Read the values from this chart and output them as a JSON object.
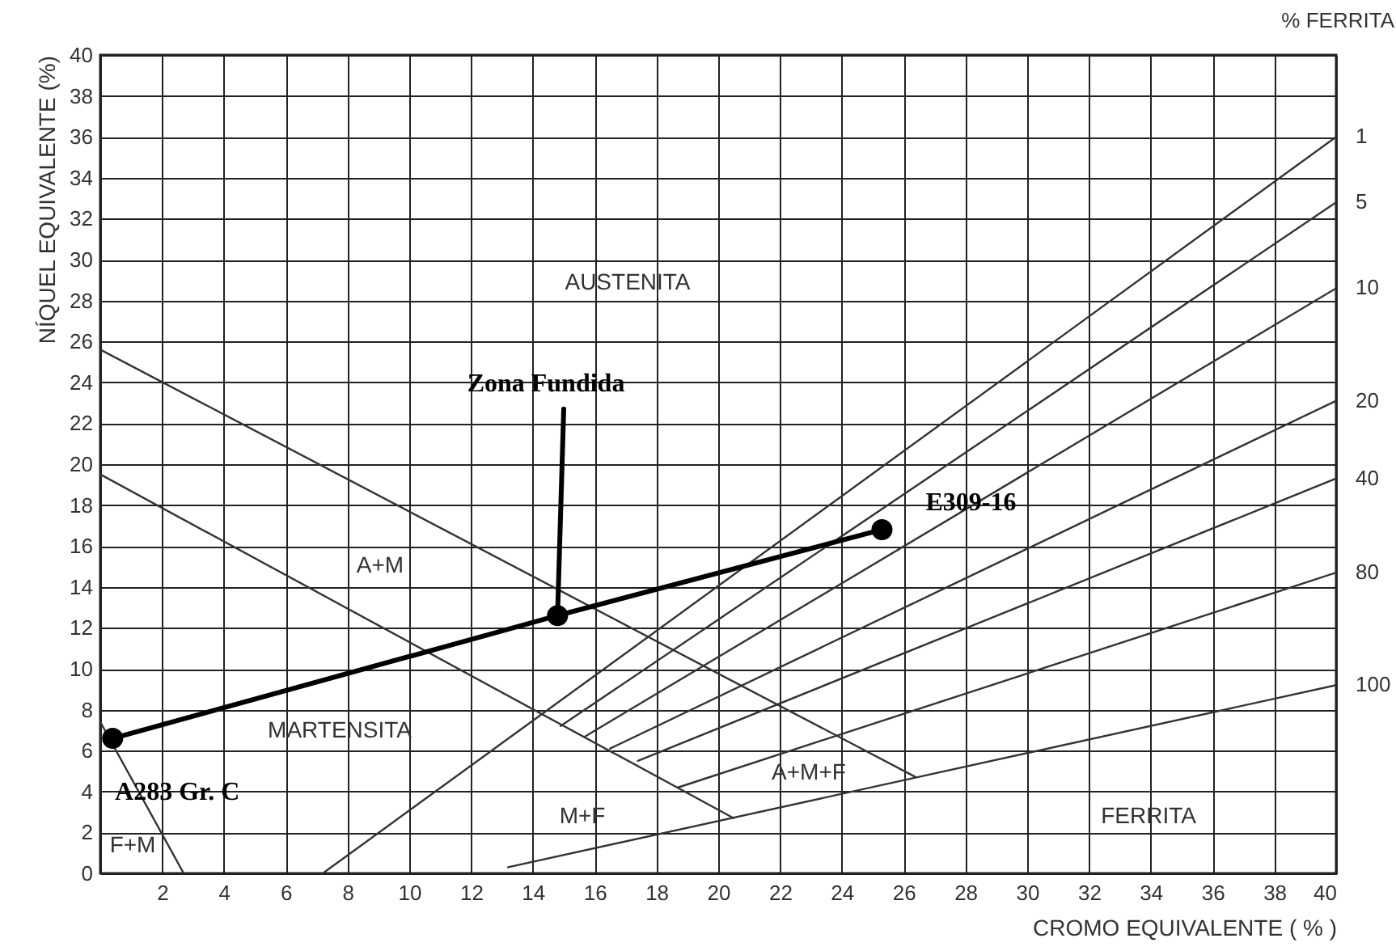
{
  "chart_data": {
    "type": "line",
    "xlabel": "CROMO EQUIVALENTE  ( % )",
    "ylabel": "NÍQUEL EQUIVALENTE (%)",
    "legend_title": "% FERRITA",
    "xlim": [
      0,
      40
    ],
    "ylim": [
      0,
      40
    ],
    "xticks": [
      {
        "value": 0,
        "label": null
      },
      2,
      4,
      6,
      8,
      10,
      12,
      14,
      16,
      18,
      20,
      22,
      24,
      26,
      28,
      30,
      32,
      34,
      36,
      38,
      40
    ],
    "yticks": [
      0,
      2,
      4,
      6,
      8,
      10,
      12,
      14,
      16,
      18,
      20,
      22,
      24,
      26,
      28,
      30,
      32,
      34,
      36,
      38,
      40
    ],
    "grid": true,
    "line_style": "solid",
    "series": [
      {
        "color": "#333333",
        "x": [
          0,
          26.4
        ],
        "values": [
          25.6,
          4.7
        ]
      },
      {
        "color": "#333333",
        "x": [
          0,
          20.5
        ],
        "values": [
          19.5,
          2.7
        ]
      },
      {
        "color": "#333333",
        "x": [
          0,
          2.7
        ],
        "values": [
          7.4,
          0
        ]
      },
      {
        "name": "1",
        "color": "#333333",
        "x": [
          7.2,
          40
        ],
        "values": [
          0,
          36
        ]
      },
      {
        "name": "5",
        "color": "#333333",
        "x": [
          14.9,
          40
        ],
        "values": [
          7.2,
          32.8
        ]
      },
      {
        "name": "10",
        "color": "#333333",
        "x": [
          15.7,
          40
        ],
        "values": [
          6.7,
          28.6
        ]
      },
      {
        "name": "20",
        "color": "#333333",
        "x": [
          16.5,
          40
        ],
        "values": [
          6.1,
          23.1
        ]
      },
      {
        "name": "40",
        "color": "#333333",
        "x": [
          17.4,
          40
        ],
        "values": [
          5.5,
          19.3
        ]
      },
      {
        "name": "80",
        "color": "#333333",
        "x": [
          18.7,
          40
        ],
        "values": [
          4.2,
          14.7
        ]
      },
      {
        "name": "100",
        "color": "#333333",
        "x": [
          13.2,
          40
        ],
        "values": [
          0.3,
          9.2
        ]
      },
      {
        "color": "#000000",
        "x": [
          0.4,
          14.8,
          25.3
        ],
        "values": [
          6.6,
          12.6,
          16.8
        ],
        "marker": "circle"
      },
      {
        "color": "#000000",
        "x": [
          15,
          14.8
        ],
        "values": [
          22.7,
          12.6
        ],
        "marker": "none"
      }
    ],
    "annotations": [
      {
        "text": "Zona Fundida",
        "x": 15,
        "y": 22.7
      },
      {
        "text": "A283 Gr. C",
        "x": 0.4,
        "y": 6.6
      },
      {
        "text": "E309-16",
        "x": 25.3,
        "y": 16.8
      },
      "AUSTENITA",
      "A+M",
      "MARTENSITA",
      "M+F",
      "A+M+F",
      "FERRITA",
      "F+M"
    ]
  }
}
